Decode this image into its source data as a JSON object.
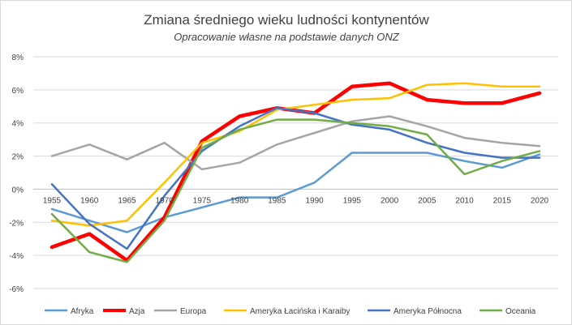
{
  "chart_data": {
    "type": "line",
    "title": "Zmiana średniego wieku ludności kontynentów",
    "subtitle": "Opracowanie własne na podstawie danych ONZ",
    "xlabel": "",
    "ylabel": "",
    "ylim": [
      -6,
      8
    ],
    "y_tick_values": [
      -6,
      -4,
      -2,
      0,
      2,
      4,
      6,
      8
    ],
    "y_tick_labels": [
      "-6%",
      "-4%",
      "-2%",
      "0%",
      "2%",
      "4%",
      "6%",
      "8%"
    ],
    "categories": [
      "1955",
      "1960",
      "1965",
      "1970",
      "1975",
      "1980",
      "1985",
      "1990",
      "1995",
      "2000",
      "2005",
      "2010",
      "2015",
      "2020"
    ],
    "grid": true,
    "legend_position": "bottom",
    "series": [
      {
        "name": "Afryka",
        "color": "#5b9bd5",
        "width": 2.5,
        "values": [
          -1.2,
          -1.9,
          -2.6,
          -1.7,
          -1.1,
          -0.5,
          -0.5,
          0.4,
          2.2,
          2.2,
          2.2,
          1.7,
          1.3,
          2.1
        ]
      },
      {
        "name": "Azja",
        "color": "#ff0000",
        "width": 4.5,
        "values": [
          -3.5,
          -2.7,
          -4.3,
          -1.7,
          2.9,
          4.4,
          4.9,
          4.6,
          6.2,
          6.4,
          5.4,
          5.2,
          5.2,
          5.8
        ]
      },
      {
        "name": "Europa",
        "color": "#a5a5a5",
        "width": 2.5,
        "values": [
          2.0,
          2.7,
          1.8,
          2.8,
          1.2,
          1.6,
          2.7,
          3.4,
          4.1,
          4.4,
          3.8,
          3.1,
          2.8,
          2.6
        ]
      },
      {
        "name": "Ameryka Łacińska i Karaiby",
        "color": "#ffc000",
        "width": 2.5,
        "values": [
          -1.9,
          -2.2,
          -1.9,
          0.4,
          2.8,
          3.5,
          4.8,
          5.1,
          5.4,
          5.5,
          6.3,
          6.4,
          6.2,
          6.2
        ]
      },
      {
        "name": "Ameryka Północna",
        "color": "#4472c4",
        "width": 2.5,
        "values": [
          0.3,
          -2.1,
          -3.6,
          -0.4,
          2.3,
          3.8,
          4.9,
          4.6,
          3.9,
          3.6,
          2.8,
          2.2,
          1.9,
          1.9
        ]
      },
      {
        "name": "Oceania",
        "color": "#70ad47",
        "width": 2.5,
        "values": [
          -1.5,
          -3.8,
          -4.4,
          -1.9,
          2.5,
          3.6,
          4.2,
          4.2,
          4.0,
          3.8,
          3.3,
          0.9,
          1.7,
          2.3
        ]
      }
    ]
  }
}
